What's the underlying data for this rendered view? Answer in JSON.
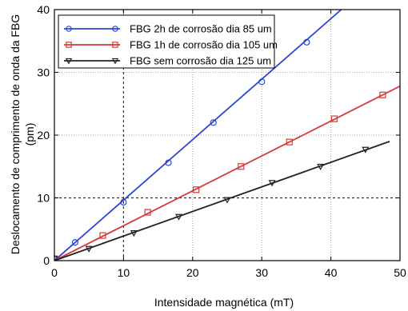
{
  "chart_data": {
    "type": "line",
    "title": "",
    "xlabel": "Intensidade magnética (mT)",
    "ylabel_line1": "Deslocamento de comprimento de onda da FBG",
    "ylabel_line2": "(pm)",
    "xlim": [
      0,
      50
    ],
    "ylim": [
      0,
      40
    ],
    "x_ticks": [
      0,
      10,
      20,
      30,
      40,
      50
    ],
    "y_ticks": [
      0,
      10,
      20,
      30,
      40
    ],
    "grid": true,
    "grid_style": "dotted, with dark dashed emphasis lines at x=10 and y=10",
    "legend_position": "top-left",
    "series": [
      {
        "name": "FBG 2h de corrosão dia 85 um",
        "color": "#2b45d6",
        "marker": "circle",
        "line": [
          [
            0,
            0
          ],
          [
            41.5,
            40
          ]
        ],
        "x": [
          0,
          3,
          10,
          16.5,
          23,
          30,
          36.5
        ],
        "y": [
          0.3,
          2.9,
          9.3,
          15.6,
          22,
          28.5,
          34.8
        ]
      },
      {
        "name": "FBG 1h de corrosão dia 105 um",
        "color": "#d63a3a",
        "marker": "square",
        "line": [
          [
            0,
            0
          ],
          [
            50,
            27.8
          ]
        ],
        "x": [
          0,
          7,
          13.5,
          20.5,
          27,
          34,
          40.5,
          47.5
        ],
        "y": [
          0.3,
          4,
          7.7,
          11.3,
          15,
          18.9,
          22.6,
          26.4
        ]
      },
      {
        "name": "FBG sem corrosão dia 125 um",
        "color": "#222222",
        "marker": "triangle-down",
        "line": [
          [
            0,
            0
          ],
          [
            48.5,
            19
          ]
        ],
        "x": [
          0,
          5,
          11.5,
          18,
          25,
          31.5,
          38.5,
          45
        ],
        "y": [
          0.3,
          1.9,
          4.4,
          7,
          9.7,
          12.4,
          15,
          17.7
        ]
      }
    ]
  }
}
